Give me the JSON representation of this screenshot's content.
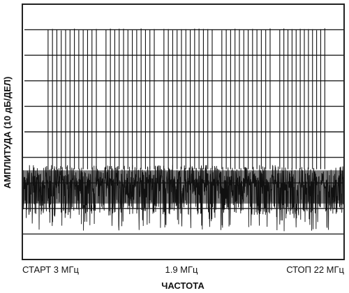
{
  "chart_data": {
    "type": "line",
    "title": "",
    "xlabel": "ЧАСТОТА",
    "ylabel": "АМПЛИТУДА (10 дБ/ДЕЛ)",
    "x_tick_labels": {
      "start": "СТАРТ 3 МГц",
      "center": "1.9 МГц",
      "stop": "СТОП 22 МГц"
    },
    "x_range_mhz": [
      3,
      22
    ],
    "y_divisions": 10,
    "grid": true,
    "legend": "none",
    "line_color": "#111111",
    "grid_color": "#222222",
    "noise_floor_div_from_top": [
      6.3,
      8.9
    ],
    "tone_peak_div_from_top": 1.0,
    "tone_groups": [
      {
        "name": "",
        "start_div": 0.8,
        "end_div": 2.3,
        "count": 12
      },
      {
        "name": "",
        "start_div": 2.6,
        "end_div": 4.1,
        "count": 12
      },
      {
        "name": "",
        "start_div": 4.4,
        "end_div": 5.9,
        "count": 12
      },
      {
        "name": "",
        "start_div": 6.2,
        "end_div": 7.7,
        "count": 12
      },
      {
        "name": "",
        "start_div": 8.0,
        "end_div": 9.4,
        "count": 12
      }
    ]
  }
}
